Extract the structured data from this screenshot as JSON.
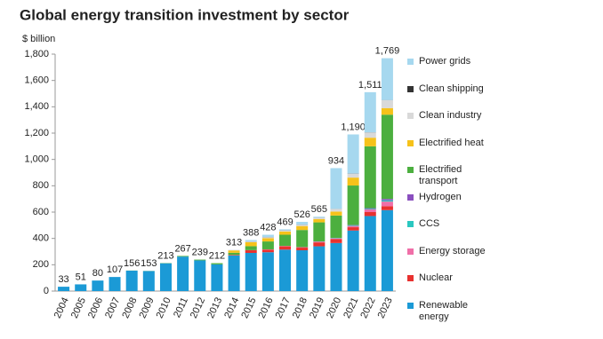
{
  "chart_data": {
    "type": "stacked-bar",
    "title": "Global energy transition investment by sector",
    "y_label": "$ billion",
    "categories": [
      "2004",
      "2005",
      "2006",
      "2007",
      "2008",
      "2009",
      "2010",
      "2011",
      "2012",
      "2013",
      "2014",
      "2015",
      "2016",
      "2017",
      "2018",
      "2019",
      "2020",
      "2021",
      "2022",
      "2023"
    ],
    "series": [
      {
        "name": "Renewable energy",
        "color": "#1b9ad6",
        "values": [
          33,
          51,
          80,
          107,
          155,
          152,
          211,
          262,
          233,
          203,
          270,
          290,
          295,
          315,
          310,
          340,
          365,
          460,
          570,
          615
        ]
      },
      {
        "name": "Nuclear",
        "color": "#e8312f",
        "values": [
          0,
          0,
          0,
          0,
          0,
          0,
          0,
          0,
          0,
          0,
          4,
          20,
          20,
          25,
          20,
          30,
          30,
          25,
          30,
          30
        ]
      },
      {
        "name": "Energy storage",
        "color": "#f06fa8",
        "values": [
          0,
          0,
          0,
          0,
          0,
          0,
          0,
          0,
          0,
          0,
          1,
          1,
          2,
          3,
          4,
          5,
          5,
          10,
          20,
          35
        ]
      },
      {
        "name": "CCS",
        "color": "#2ac7c0",
        "values": [
          0,
          0,
          0,
          0,
          0,
          0,
          0,
          0,
          0,
          0,
          0,
          0,
          0,
          0,
          0,
          1,
          3,
          5,
          5,
          10
        ]
      },
      {
        "name": "Hydrogen",
        "color": "#8a4fbf",
        "values": [
          0,
          0,
          0,
          0,
          0,
          0,
          0,
          0,
          0,
          0,
          0,
          0,
          0,
          0,
          0,
          1,
          1,
          2,
          5,
          10
        ]
      },
      {
        "name": "Electrified transport",
        "color": "#4caf3f",
        "values": [
          0,
          0,
          0,
          0,
          1,
          1,
          2,
          5,
          6,
          9,
          16,
          30,
          60,
          85,
          130,
          145,
          170,
          300,
          470,
          640
        ]
      },
      {
        "name": "Electrified heat",
        "color": "#f6c21a",
        "values": [
          0,
          0,
          0,
          0,
          0,
          0,
          0,
          0,
          0,
          0,
          18,
          30,
          25,
          25,
          30,
          25,
          30,
          60,
          65,
          50
        ]
      },
      {
        "name": "Clean industry",
        "color": "#d9d9d9",
        "values": [
          0,
          0,
          0,
          0,
          0,
          0,
          0,
          0,
          0,
          0,
          4,
          6,
          8,
          8,
          10,
          10,
          20,
          30,
          40,
          60
        ]
      },
      {
        "name": "Clean shipping",
        "color": "#333333",
        "values": [
          0,
          0,
          0,
          0,
          0,
          0,
          0,
          0,
          0,
          0,
          0,
          1,
          1,
          1,
          1,
          1,
          1,
          1,
          1,
          1
        ]
      },
      {
        "name": "Power grids",
        "color": "#a6d8ef",
        "values": [
          0,
          0,
          0,
          0,
          0,
          0,
          0,
          0,
          0,
          0,
          0,
          10,
          17,
          7,
          21,
          7,
          309,
          297,
          305,
          318
        ]
      }
    ],
    "totals": {
      "values": [
        33,
        51,
        80,
        107,
        156,
        153,
        213,
        267,
        239,
        212,
        313,
        388,
        428,
        469,
        526,
        565,
        934,
        1190,
        1511,
        1769
      ],
      "value_labels": [
        "33",
        "51",
        "80",
        "107",
        "156",
        "153",
        "213",
        "267",
        "239",
        "212",
        "313",
        "388",
        "428",
        "469",
        "526",
        "565",
        "934",
        "1,190",
        "1,511",
        "1,769"
      ]
    },
    "ylim": [
      0,
      1800
    ],
    "yticks": [
      0,
      200,
      400,
      600,
      800,
      {
        "value": 1000,
        "label": "1,000"
      },
      {
        "value": 1200,
        "label": "1,200"
      },
      {
        "value": 1400,
        "label": "1,400"
      },
      {
        "value": 1600,
        "label": "1,600"
      },
      {
        "value": 1800,
        "label": "1,800"
      }
    ],
    "grid": false
  }
}
